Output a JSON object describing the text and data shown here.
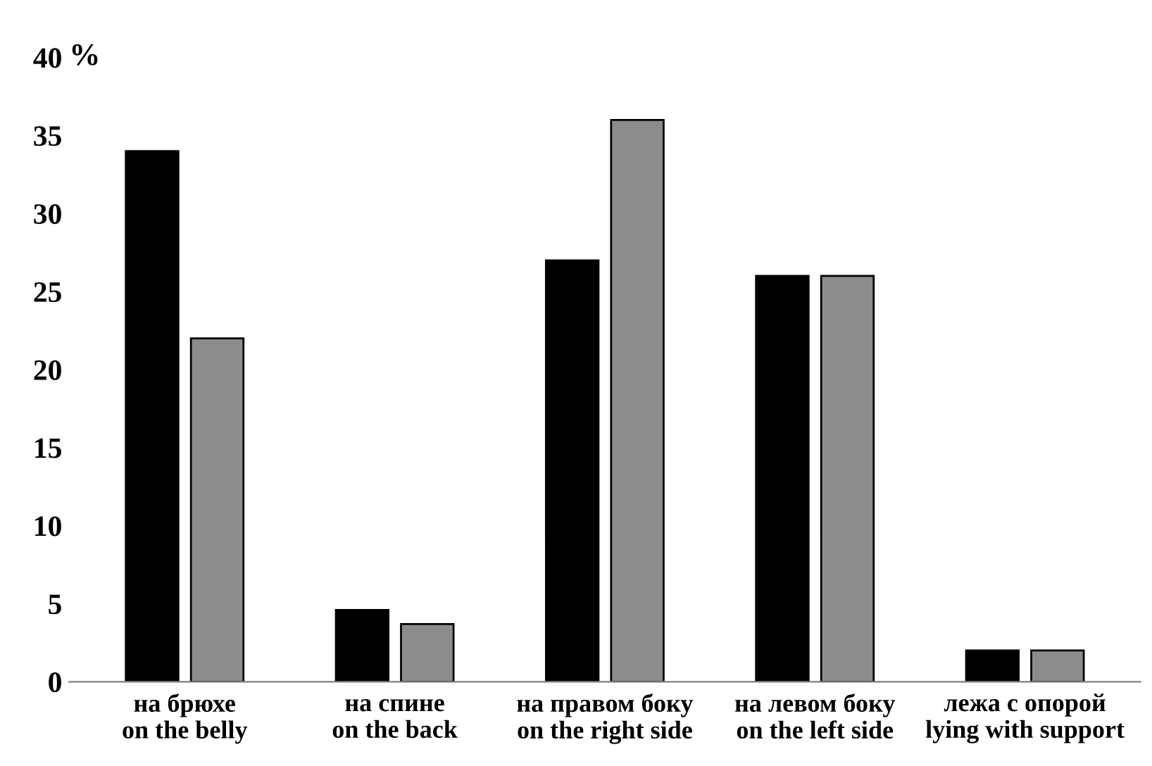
{
  "chart_data": {
    "type": "bar",
    "ylabel": "%",
    "categories": [
      "на брюхе\non the belly",
      "на спине\non the back",
      "на правом боку\non the right side",
      "на левом боку\non the left side",
      "лежа с опорой\nlying with support"
    ],
    "series": [
      {
        "color": "#000000",
        "values": [
          34,
          4.6,
          27,
          26,
          2
        ]
      },
      {
        "color": "#8c8c8c",
        "values": [
          22,
          3.7,
          36,
          26,
          2
        ]
      }
    ],
    "ylim": [
      0,
      40
    ],
    "yticks": [
      0,
      5,
      10,
      15,
      20,
      25,
      30,
      35,
      40
    ],
    "grid": false,
    "legend": false
  }
}
